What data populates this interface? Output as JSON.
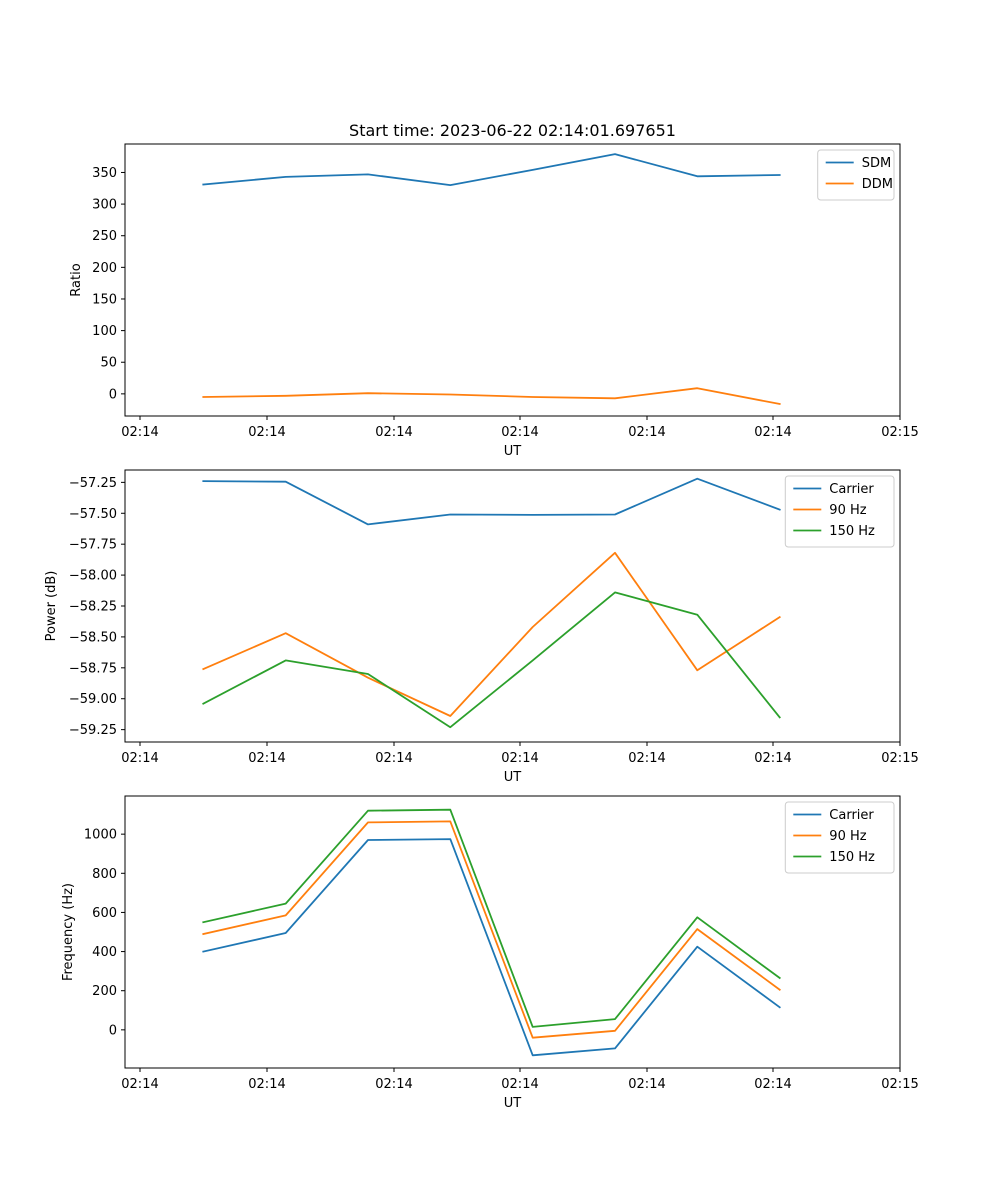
{
  "figure": {
    "title": "Start time: 2023-06-22 02:14:01.697651"
  },
  "chart_data": [
    {
      "type": "line",
      "xlabel": "UT",
      "ylabel": "Ratio",
      "x_tick_labels": [
        "02:14",
        "02:14",
        "02:14",
        "02:14",
        "02:14",
        "02:14",
        "02:15"
      ],
      "x_domain": [
        0,
        6
      ],
      "x": [
        0.5,
        1.15,
        1.8,
        2.45,
        3.1,
        3.75,
        4.4,
        5.05
      ],
      "ylim": [
        -35,
        395
      ],
      "yticks": [
        0,
        50,
        100,
        150,
        200,
        250,
        300,
        350
      ],
      "y_tick_labels": [
        "0",
        "50",
        "100",
        "150",
        "200",
        "250",
        "300",
        "350"
      ],
      "legend_position": "top-right",
      "series": [
        {
          "name": "SDM",
          "color": "#1f77b4",
          "values": [
            331,
            343,
            347,
            330,
            354,
            379,
            344,
            346
          ]
        },
        {
          "name": "DDM",
          "color": "#ff7f0e",
          "values": [
            -5,
            -3,
            1,
            -1,
            -5,
            -7,
            9,
            -16
          ]
        }
      ]
    },
    {
      "type": "line",
      "xlabel": "UT",
      "ylabel": "Power (dB)",
      "x_tick_labels": [
        "02:14",
        "02:14",
        "02:14",
        "02:14",
        "02:14",
        "02:14",
        "02:15"
      ],
      "x_domain": [
        0,
        6
      ],
      "x": [
        0.5,
        1.15,
        1.8,
        2.45,
        3.1,
        3.75,
        4.4,
        5.05
      ],
      "ylim": [
        -59.35,
        -57.15
      ],
      "yticks": [
        -59.25,
        -59.0,
        -58.75,
        -58.5,
        -58.25,
        -58.0,
        -57.75,
        -57.5,
        -57.25
      ],
      "y_tick_labels": [
        "−59.25",
        "−59.00",
        "−58.75",
        "−58.50",
        "−58.25",
        "−58.00",
        "−57.75",
        "−57.50",
        "−57.25"
      ],
      "legend_position": "top-right",
      "series": [
        {
          "name": "Carrier",
          "color": "#1f77b4",
          "values": [
            -57.24,
            -57.245,
            -57.59,
            -57.51,
            -57.513,
            -57.51,
            -57.22,
            -57.47
          ]
        },
        {
          "name": "90 Hz",
          "color": "#ff7f0e",
          "values": [
            -58.76,
            -58.47,
            -58.83,
            -59.14,
            -58.42,
            -57.82,
            -58.77,
            -58.34
          ]
        },
        {
          "name": "150 Hz",
          "color": "#2ca02c",
          "values": [
            -59.04,
            -58.69,
            -58.8,
            -59.23,
            -58.69,
            -58.14,
            -58.32,
            -59.15
          ]
        }
      ]
    },
    {
      "type": "line",
      "xlabel": "UT",
      "ylabel": "Frequency (Hz)",
      "x_tick_labels": [
        "02:14",
        "02:14",
        "02:14",
        "02:14",
        "02:14",
        "02:14",
        "02:15"
      ],
      "x_domain": [
        0,
        6
      ],
      "x": [
        0.5,
        1.15,
        1.8,
        2.45,
        3.1,
        3.75,
        4.4,
        5.05
      ],
      "ylim": [
        -195,
        1195
      ],
      "yticks": [
        0,
        200,
        400,
        600,
        800,
        1000
      ],
      "y_tick_labels": [
        "0",
        "200",
        "400",
        "600",
        "800",
        "1000"
      ],
      "legend_position": "top-right",
      "series": [
        {
          "name": "Carrier",
          "color": "#1f77b4",
          "values": [
            400,
            495,
            970,
            975,
            -130,
            -95,
            425,
            115
          ]
        },
        {
          "name": "90 Hz",
          "color": "#ff7f0e",
          "values": [
            490,
            585,
            1060,
            1065,
            -40,
            -5,
            515,
            205
          ]
        },
        {
          "name": "150 Hz",
          "color": "#2ca02c",
          "values": [
            550,
            645,
            1120,
            1125,
            15,
            55,
            575,
            265
          ]
        }
      ]
    }
  ]
}
